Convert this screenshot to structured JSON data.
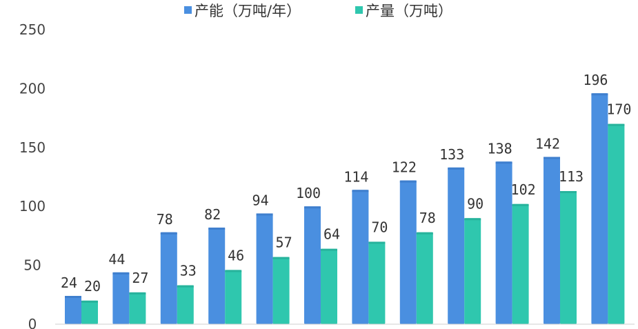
{
  "chart_data": {
    "type": "bar",
    "title": "",
    "xlabel": "",
    "ylabel": "",
    "ylim": [
      0,
      250
    ],
    "yticks": [
      0,
      50,
      100,
      150,
      200,
      250
    ],
    "grid": false,
    "legend_position": "top-center",
    "categories": [
      "",
      "",
      "",
      "",
      "",
      "",
      "",
      "",
      "",
      "",
      "",
      ""
    ],
    "series": [
      {
        "name": "产能（万吨/年）",
        "color": "#4a8fe0",
        "values": [
          24,
          44,
          78,
          82,
          94,
          100,
          114,
          122,
          133,
          138,
          142,
          196
        ]
      },
      {
        "name": "产量（万吨）",
        "color": "#2fc7ae",
        "values": [
          20,
          27,
          33,
          46,
          57,
          64,
          70,
          78,
          90,
          102,
          113,
          170
        ]
      }
    ]
  }
}
